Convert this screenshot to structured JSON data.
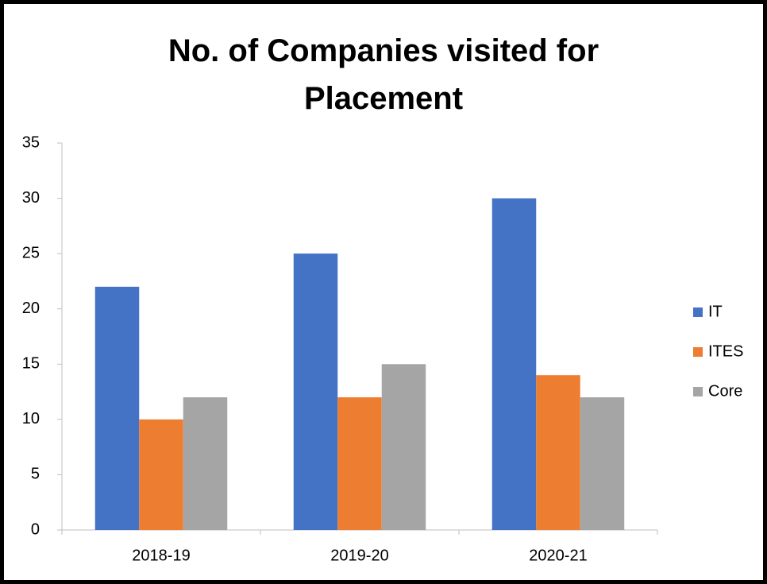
{
  "chart_data": {
    "type": "bar",
    "title": "No. of Companies visited for Placement",
    "categories": [
      "2018-19",
      "2019-20",
      "2020-21"
    ],
    "series": [
      {
        "name": "IT",
        "color": "#4472c4",
        "values": [
          22,
          25,
          30
        ]
      },
      {
        "name": "ITES",
        "color": "#ed7d31",
        "values": [
          10,
          12,
          14
        ]
      },
      {
        "name": "Core",
        "color": "#a5a5a5",
        "values": [
          12,
          15,
          12
        ]
      }
    ],
    "ylim": [
      0,
      35
    ],
    "yticks": [
      0,
      5,
      10,
      15,
      20,
      25,
      30,
      35
    ],
    "grid": false,
    "legend": "right"
  }
}
